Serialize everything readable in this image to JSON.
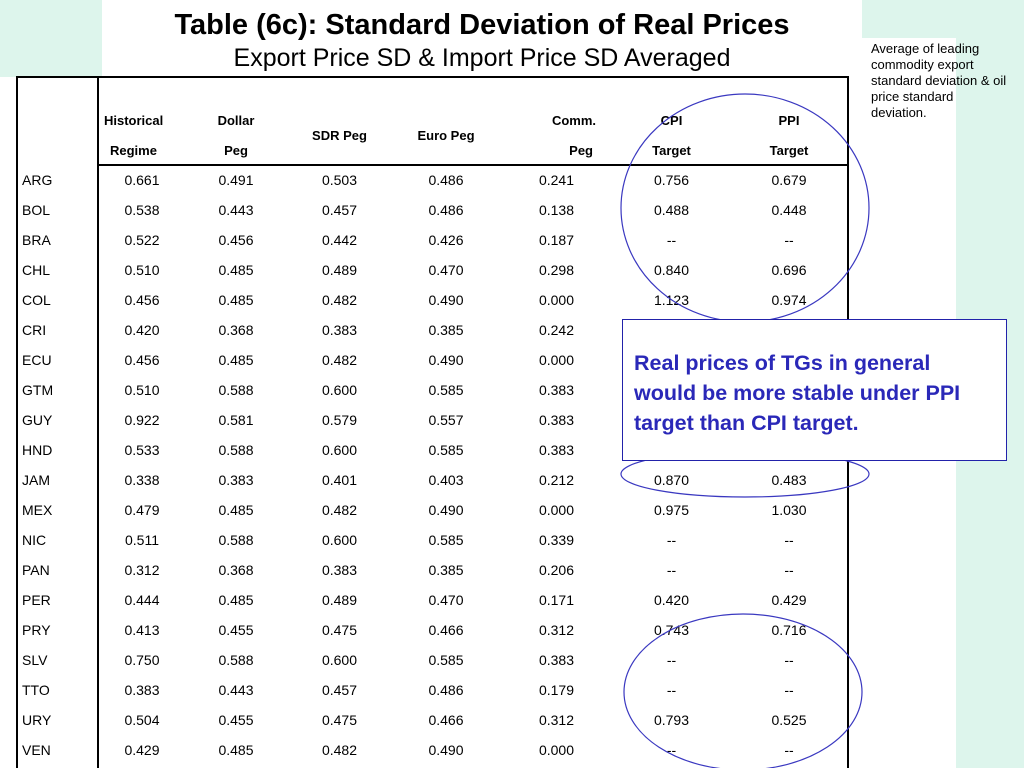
{
  "title": "Table (6c): Standard Deviation of Real Prices",
  "subtitle": "Export Price SD & Import Price SD Averaged",
  "side_note": "Average of leading commodity export standard deviation & oil price standard deviation.",
  "callout": "Real prices of TGs in general would be more stable under PPI target than CPI target.",
  "colors": {
    "mint": "#ddf5ec",
    "callout_text": "#2a28b8",
    "ellipse": "#3a38c0"
  },
  "table": {
    "headers": {
      "hist": [
        "Historical",
        "Regime"
      ],
      "dollar": [
        "Dollar",
        "Peg"
      ],
      "sdr": "SDR Peg",
      "euro": "Euro Peg",
      "comm": [
        "Comm.",
        "Peg"
      ],
      "cpi": [
        "CPI",
        "Target"
      ],
      "ppi": [
        "PPI",
        "Target"
      ]
    },
    "rows": [
      [
        "ARG",
        "0.661",
        "0.491",
        "0.503",
        "0.486",
        "0.241",
        "0.756",
        "0.679"
      ],
      [
        "BOL",
        "0.538",
        "0.443",
        "0.457",
        "0.486",
        "0.138",
        "0.488",
        "0.448"
      ],
      [
        "BRA",
        "0.522",
        "0.456",
        "0.442",
        "0.426",
        "0.187",
        "--",
        "--"
      ],
      [
        "CHL",
        "0.510",
        "0.485",
        "0.489",
        "0.470",
        "0.298",
        "0.840",
        "0.696"
      ],
      [
        "COL",
        "0.456",
        "0.485",
        "0.482",
        "0.490",
        "0.000",
        "1.123",
        "0.974"
      ],
      [
        "CRI",
        "0.420",
        "0.368",
        "0.383",
        "0.385",
        "0.242",
        "",
        ""
      ],
      [
        "ECU",
        "0.456",
        "0.485",
        "0.482",
        "0.490",
        "0.000",
        "",
        ""
      ],
      [
        "GTM",
        "0.510",
        "0.588",
        "0.600",
        "0.585",
        "0.383",
        "",
        ""
      ],
      [
        "GUY",
        "0.922",
        "0.581",
        "0.579",
        "0.557",
        "0.383",
        "",
        ""
      ],
      [
        "HND",
        "0.533",
        "0.588",
        "0.600",
        "0.585",
        "0.383",
        "",
        ""
      ],
      [
        "JAM",
        "0.338",
        "0.383",
        "0.401",
        "0.403",
        "0.212",
        "0.870",
        "0.483"
      ],
      [
        "MEX",
        "0.479",
        "0.485",
        "0.482",
        "0.490",
        "0.000",
        "0.975",
        "1.030"
      ],
      [
        "NIC",
        "0.511",
        "0.588",
        "0.600",
        "0.585",
        "0.339",
        "--",
        "--"
      ],
      [
        "PAN",
        "0.312",
        "0.368",
        "0.383",
        "0.385",
        "0.206",
        "--",
        "--"
      ],
      [
        "PER",
        "0.444",
        "0.485",
        "0.489",
        "0.470",
        "0.171",
        "0.420",
        "0.429"
      ],
      [
        "PRY",
        "0.413",
        "0.455",
        "0.475",
        "0.466",
        "0.312",
        "0.743",
        "0.716"
      ],
      [
        "SLV",
        "0.750",
        "0.588",
        "0.600",
        "0.585",
        "0.383",
        "--",
        "--"
      ],
      [
        "TTO",
        "0.383",
        "0.443",
        "0.457",
        "0.486",
        "0.179",
        "--",
        "--"
      ],
      [
        "URY",
        "0.504",
        "0.455",
        "0.475",
        "0.466",
        "0.312",
        "0.793",
        "0.525"
      ],
      [
        "VEN",
        "0.429",
        "0.485",
        "0.482",
        "0.490",
        "0.000",
        "--",
        "--"
      ]
    ]
  }
}
